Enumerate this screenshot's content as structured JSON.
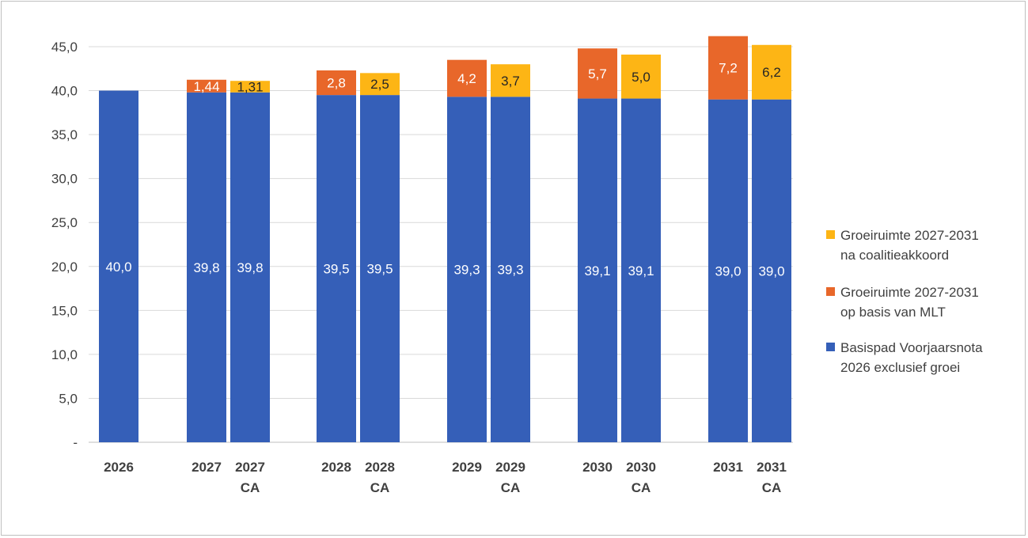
{
  "chart_data": {
    "type": "bar",
    "stacked": true,
    "ylim": [
      0,
      45
    ],
    "ytick_step": 5,
    "ytick_labels": [
      "-",
      "5,0",
      "10,0",
      "15,0",
      "20,0",
      "25,0",
      "30,0",
      "35,0",
      "40,0",
      "45,0"
    ],
    "grid": true,
    "legend_position": "right",
    "groups": [
      "2026",
      "2027",
      "2028",
      "2029",
      "2030",
      "2031"
    ],
    "categories": [
      {
        "group": 0,
        "label": [
          "2026"
        ]
      },
      {
        "group": 1,
        "label": [
          "2027"
        ]
      },
      {
        "group": 1,
        "label": [
          "2027",
          "CA"
        ]
      },
      {
        "group": 2,
        "label": [
          "2028"
        ]
      },
      {
        "group": 2,
        "label": [
          "2028",
          "CA"
        ]
      },
      {
        "group": 3,
        "label": [
          "2029"
        ]
      },
      {
        "group": 3,
        "label": [
          "2029",
          "CA"
        ]
      },
      {
        "group": 4,
        "label": [
          "2030"
        ]
      },
      {
        "group": 4,
        "label": [
          "2030",
          "CA"
        ]
      },
      {
        "group": 5,
        "label": [
          "2031"
        ]
      },
      {
        "group": 5,
        "label": [
          "2031",
          "CA"
        ]
      }
    ],
    "series": [
      {
        "name": "Basispad Voorjaarsnota 2026 exclusief groei",
        "legend_lines": [
          "Basispad Voorjaarsnota",
          "2026 exclusief groei"
        ],
        "color": "#355FB8",
        "label_color": "#ffffff",
        "values": [
          40.0,
          39.8,
          39.8,
          39.5,
          39.5,
          39.3,
          39.3,
          39.1,
          39.1,
          39.0,
          39.0
        ],
        "labels": [
          "40,0",
          "39,8",
          "39,8",
          "39,5",
          "39,5",
          "39,3",
          "39,3",
          "39,1",
          "39,1",
          "39,0",
          "39,0"
        ]
      },
      {
        "name": "Groeiruimte 2027-2031 op basis van MLT",
        "legend_lines": [
          "Groeiruimte 2027-2031",
          "op basis van MLT"
        ],
        "color": "#E8672A",
        "label_color": "#ffffff",
        "values": [
          0,
          1.44,
          0,
          2.8,
          0,
          4.2,
          0,
          5.7,
          0,
          7.2,
          0
        ],
        "labels": [
          "",
          "1,44",
          "",
          "2,8",
          "",
          "4,2",
          "",
          "5,7",
          "",
          "7,2",
          ""
        ]
      },
      {
        "name": "Groeiruimte 2027-2031 na coalitieakkoord",
        "legend_lines": [
          "Groeiruimte 2027-2031",
          "na coalitieakkoord"
        ],
        "color": "#FDB515",
        "label_color": "#262626",
        "values": [
          0,
          0,
          1.31,
          0,
          2.5,
          0,
          3.7,
          0,
          5.0,
          0,
          6.2
        ],
        "labels": [
          "",
          "",
          "1,31",
          "",
          "2,5",
          "",
          "3,7",
          "",
          "5,0",
          "",
          "6,2"
        ]
      }
    ],
    "legend_order": [
      2,
      1,
      0
    ]
  }
}
